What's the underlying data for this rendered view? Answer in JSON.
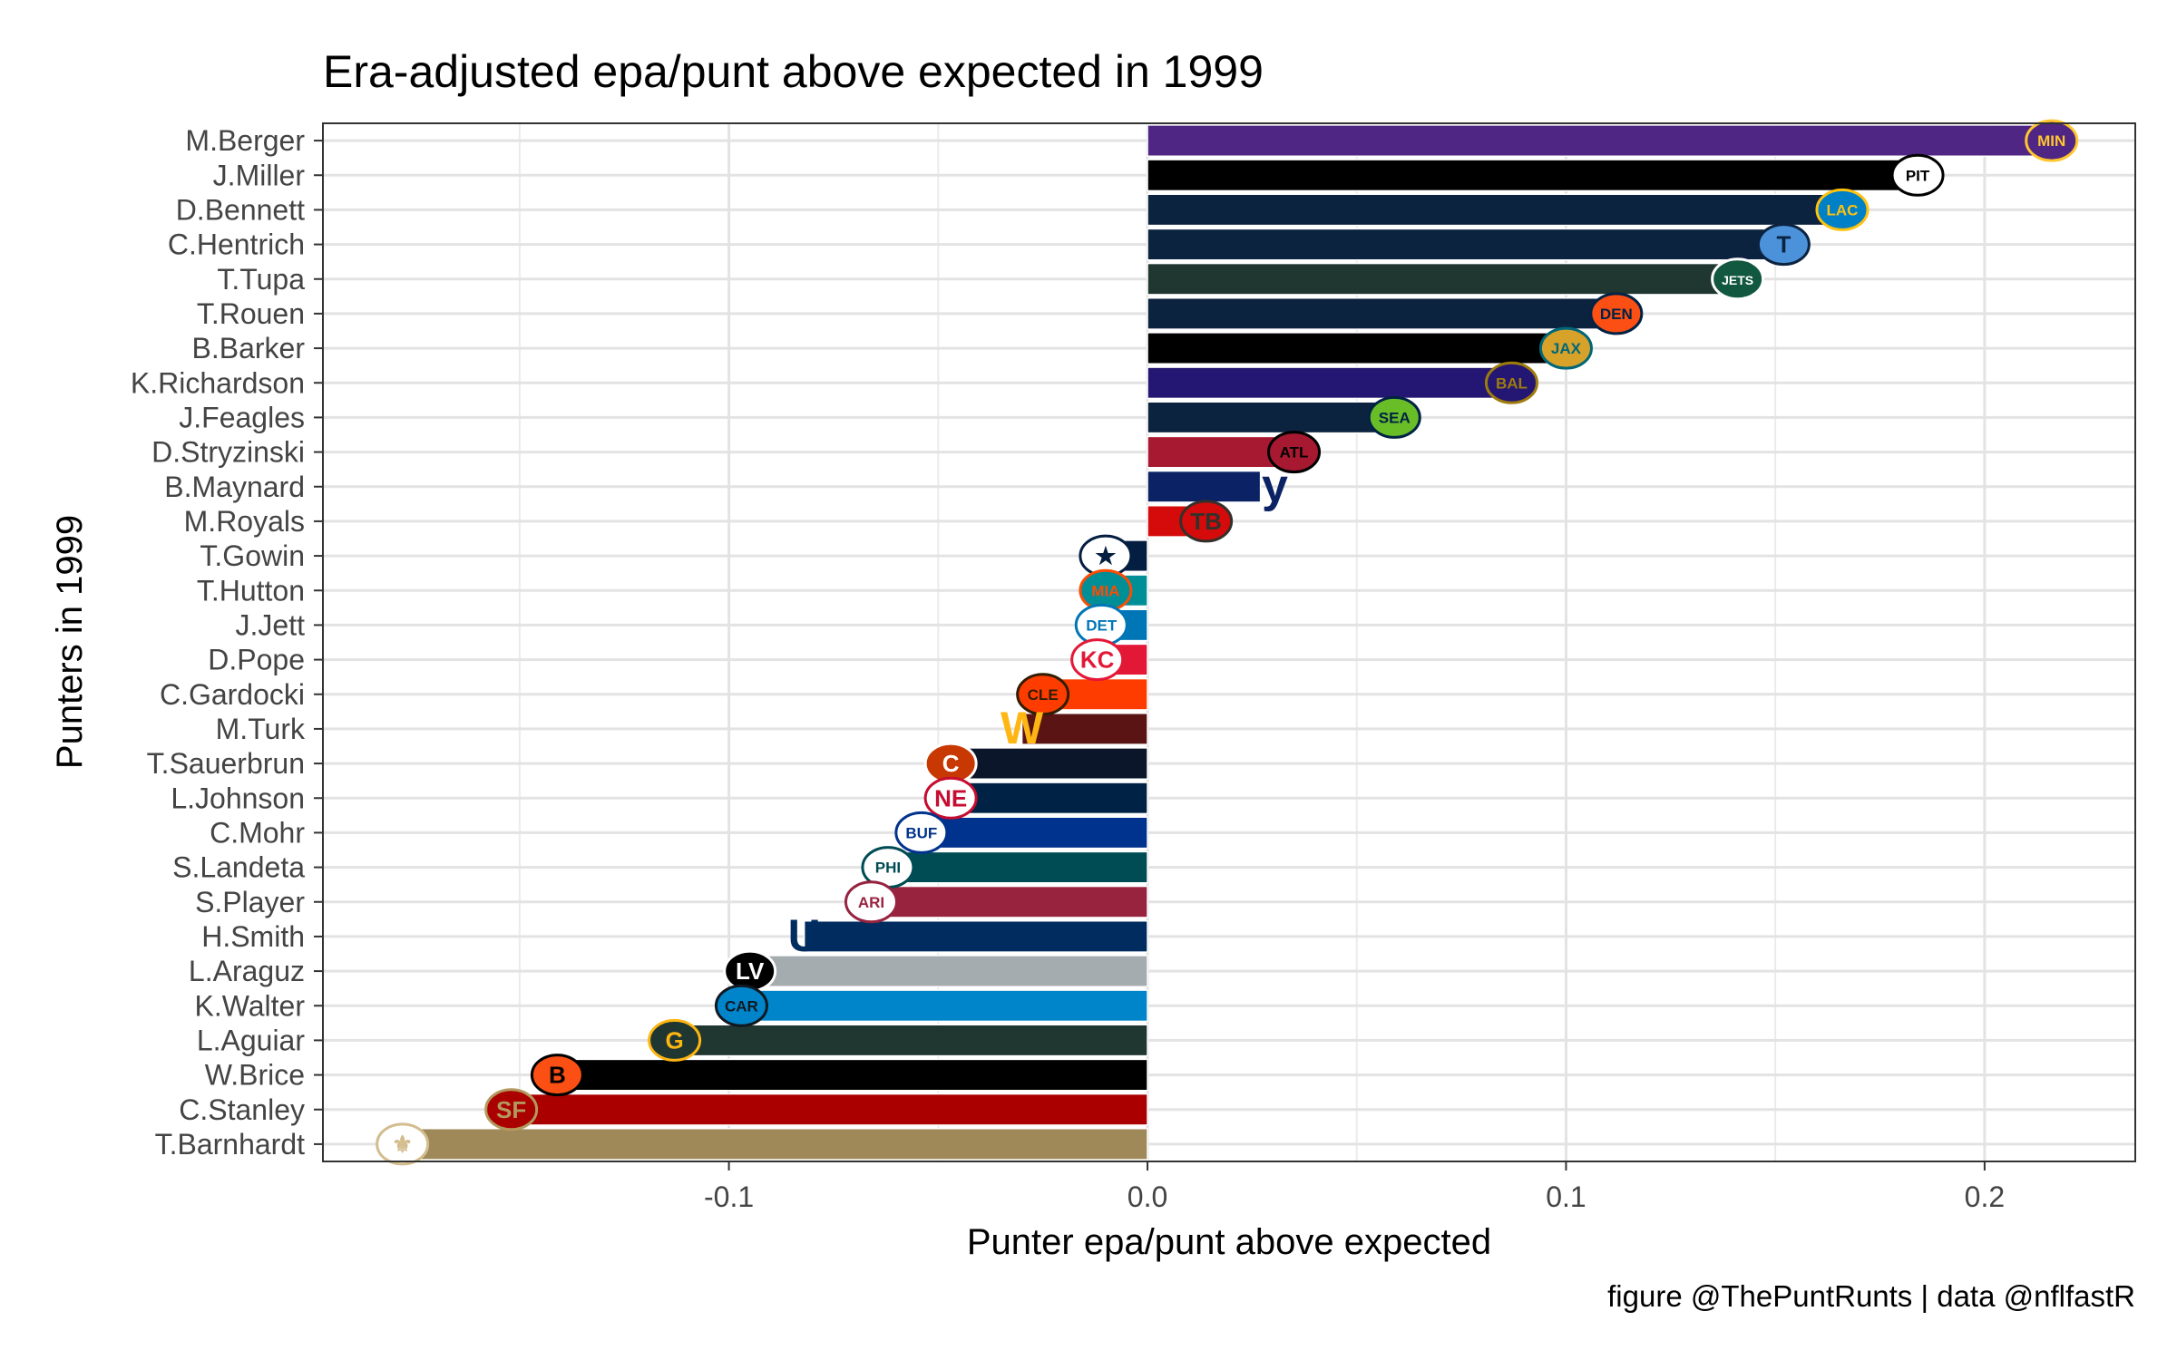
{
  "chart_data": {
    "type": "bar",
    "orientation": "horizontal",
    "title": "Era-adjusted epa/punt above expected in 1999",
    "xlabel": "Punter epa/punt above expected",
    "ylabel": "Punters in 1999",
    "caption": "figure @ThePuntRunts | data @nflfastR",
    "xlim": [
      -0.197,
      0.236
    ],
    "xticks": [
      -0.1,
      0.0,
      0.1,
      0.2
    ],
    "xtick_labels": [
      "-0.1",
      "0.0",
      "0.1",
      "0.2"
    ],
    "grid": true,
    "legend": "none",
    "bars": [
      {
        "name": "M.Berger",
        "value": 0.216,
        "color": "#4F2683",
        "logo": "vikings-logo-icon"
      },
      {
        "name": "J.Miller",
        "value": 0.184,
        "color": "#000000",
        "logo": "steelers-logo-icon"
      },
      {
        "name": "D.Bennett",
        "value": 0.166,
        "color": "#0C2340",
        "logo": "chargers-logo-icon"
      },
      {
        "name": "C.Hentrich",
        "value": 0.152,
        "color": "#0C2340",
        "logo": "titans-logo-icon"
      },
      {
        "name": "T.Tupa",
        "value": 0.141,
        "color": "#203731",
        "logo": "jets-logo-icon"
      },
      {
        "name": "T.Rouen",
        "value": 0.112,
        "color": "#0C2340",
        "logo": "broncos-logo-icon"
      },
      {
        "name": "B.Barker",
        "value": 0.1,
        "color": "#000000",
        "logo": "jaguars-logo-icon"
      },
      {
        "name": "K.Richardson",
        "value": 0.087,
        "color": "#241773",
        "logo": "ravens-logo-icon"
      },
      {
        "name": "J.Feagles",
        "value": 0.059,
        "color": "#0C2340",
        "logo": "seahawks-logo-icon"
      },
      {
        "name": "D.Stryzinski",
        "value": 0.035,
        "color": "#A71930",
        "logo": "falcons-logo-icon"
      },
      {
        "name": "B.Maynard",
        "value": 0.027,
        "color": "#0B2265",
        "logo": "giants-logo-icon"
      },
      {
        "name": "M.Royals",
        "value": 0.014,
        "color": "#D50A0A",
        "logo": "buccaneers-logo-icon"
      },
      {
        "name": "T.Gowin",
        "value": -0.01,
        "color": "#041E42",
        "logo": "cowboys-logo-icon"
      },
      {
        "name": "T.Hutton",
        "value": -0.01,
        "color": "#008E97",
        "logo": "dolphins-logo-icon"
      },
      {
        "name": "J.Jett",
        "value": -0.011,
        "color": "#0076B6",
        "logo": "lions-logo-icon"
      },
      {
        "name": "D.Pope",
        "value": -0.012,
        "color": "#E31837",
        "logo": "chiefs-logo-icon"
      },
      {
        "name": "C.Gardocki",
        "value": -0.025,
        "color": "#FF3C00",
        "logo": "browns-logo-icon"
      },
      {
        "name": "M.Turk",
        "value": -0.03,
        "color": "#5A1414",
        "logo": "commanders-logo-icon"
      },
      {
        "name": "T.Sauerbrun",
        "value": -0.047,
        "color": "#0B162A",
        "logo": "bears-logo-icon"
      },
      {
        "name": "L.Johnson",
        "value": -0.047,
        "color": "#002244",
        "logo": "patriots-logo-icon"
      },
      {
        "name": "C.Mohr",
        "value": -0.054,
        "color": "#00338D",
        "logo": "bills-logo-icon"
      },
      {
        "name": "S.Landeta",
        "value": -0.062,
        "color": "#004C54",
        "logo": "eagles-logo-icon"
      },
      {
        "name": "S.Player",
        "value": -0.066,
        "color": "#97233F",
        "logo": "cardinals-logo-icon"
      },
      {
        "name": "H.Smith",
        "value": -0.082,
        "color": "#002C5F",
        "logo": "colts-logo-icon"
      },
      {
        "name": "L.Araguz",
        "value": -0.095,
        "color": "#A5ACAF",
        "logo": "raiders-logo-icon"
      },
      {
        "name": "K.Walter",
        "value": -0.097,
        "color": "#0085CA",
        "logo": "panthers-logo-icon"
      },
      {
        "name": "L.Aguiar",
        "value": -0.113,
        "color": "#203731",
        "logo": "packers-logo-icon"
      },
      {
        "name": "W.Brice",
        "value": -0.141,
        "color": "#000000",
        "logo": "bengals-logo-icon"
      },
      {
        "name": "C.Stanley",
        "value": -0.152,
        "color": "#AA0000",
        "logo": "49ers-logo-icon"
      },
      {
        "name": "T.Barnhardt",
        "value": -0.178,
        "color": "#9F8958",
        "logo": "saints-logo-icon"
      }
    ]
  }
}
